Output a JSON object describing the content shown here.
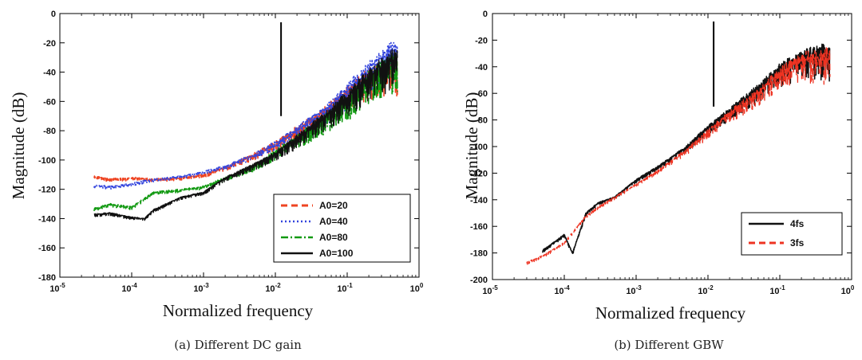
{
  "chart_data": [
    {
      "type": "line",
      "caption": "(a) Different DC gain",
      "xlabel": "Normalized frequency",
      "ylabel": "Magnitude (dB)",
      "xscale": "log",
      "xlim": [
        1e-05,
        1
      ],
      "ylim": [
        -180,
        0
      ],
      "xticks": [
        {
          "base": "10",
          "exp": "-5"
        },
        {
          "base": "10",
          "exp": "-4"
        },
        {
          "base": "10",
          "exp": "-3"
        },
        {
          "base": "10",
          "exp": "-2"
        },
        {
          "base": "10",
          "exp": "-1"
        },
        {
          "base": "10",
          "exp": "0"
        }
      ],
      "yticks": [
        "0",
        "-20",
        "-40",
        "-60",
        "-80",
        "-100",
        "-120",
        "-140",
        "-160",
        "-180"
      ],
      "yticks_values": [
        0,
        -20,
        -40,
        -60,
        -80,
        -100,
        -120,
        -140,
        -160,
        -180
      ],
      "legend_position": "lower-right",
      "grid": false,
      "series": [
        {
          "name": "A0=20",
          "color": "#ee4422",
          "style": "dashed",
          "x": [
            3e-05,
            5e-05,
            0.0001,
            0.0002,
            0.0005,
            0.001,
            0.002,
            0.005,
            0.01,
            0.02,
            0.05,
            0.1,
            0.2,
            0.5
          ],
          "y": [
            -111,
            -113,
            -112,
            -113,
            -112,
            -110,
            -105,
            -96,
            -88,
            -78,
            -65,
            -52,
            -40,
            -30
          ]
        },
        {
          "name": "A0=40",
          "color": "#3344dd",
          "style": "dotted",
          "x": [
            3e-05,
            5e-05,
            0.0001,
            0.0002,
            0.0005,
            0.001,
            0.002,
            0.005,
            0.01,
            0.02,
            0.05,
            0.1,
            0.2,
            0.5
          ],
          "y": [
            -117,
            -118,
            -116,
            -113,
            -111,
            -108,
            -104,
            -96,
            -88,
            -78,
            -64,
            -50,
            -35,
            -20
          ]
        },
        {
          "name": "A0=80",
          "color": "#119911",
          "style": "dashdot",
          "x": [
            3e-05,
            5e-05,
            0.0001,
            0.0002,
            0.0005,
            0.001,
            0.002,
            0.005,
            0.01,
            0.02,
            0.05,
            0.1,
            0.2,
            0.5
          ],
          "y": [
            -133,
            -130,
            -132,
            -122,
            -120,
            -118,
            -112,
            -104,
            -94,
            -84,
            -70,
            -58,
            -42,
            -28
          ]
        },
        {
          "name": "A0=100",
          "color": "#111111",
          "style": "solid",
          "x": [
            3e-05,
            5e-05,
            0.0001,
            0.00015,
            0.0002,
            0.0003,
            0.0005,
            0.001,
            0.002,
            0.005,
            0.01,
            0.02,
            0.05,
            0.1,
            0.2,
            0.5
          ],
          "y": [
            -137,
            -136,
            -139,
            -140,
            -134,
            -130,
            -125,
            -122,
            -112,
            -103,
            -95,
            -84,
            -68,
            -55,
            -40,
            -25
          ]
        }
      ],
      "spike": {
        "x": 0.012,
        "y": -6
      }
    },
    {
      "type": "line",
      "caption": "(b) Different GBW",
      "xlabel": "Normalized frequency",
      "ylabel": "Magnitude (dB)",
      "xscale": "log",
      "xlim": [
        1e-05,
        1
      ],
      "ylim": [
        -200,
        0
      ],
      "xticks": [
        {
          "base": "10",
          "exp": "-5"
        },
        {
          "base": "10",
          "exp": "-4"
        },
        {
          "base": "10",
          "exp": "-3"
        },
        {
          "base": "10",
          "exp": "-2"
        },
        {
          "base": "10",
          "exp": "-1"
        },
        {
          "base": "10",
          "exp": "0"
        }
      ],
      "yticks": [
        "0",
        "-20",
        "-40",
        "-60",
        "-80",
        "-100",
        "-120",
        "-140",
        "-160",
        "-180",
        "-200"
      ],
      "yticks_values": [
        0,
        -20,
        -40,
        -60,
        -80,
        -100,
        -120,
        -140,
        -160,
        -180,
        -200
      ],
      "legend_position": "lower-right",
      "grid": false,
      "series": [
        {
          "name": "4fs",
          "color": "#111111",
          "style": "solid",
          "x": [
            5e-05,
            8e-05,
            0.0001,
            0.00013,
            0.0002,
            0.0003,
            0.0005,
            0.001,
            0.002,
            0.005,
            0.01,
            0.02,
            0.05,
            0.1,
            0.2,
            0.5
          ],
          "y": [
            -178,
            -170,
            -166,
            -180,
            -150,
            -142,
            -138,
            -125,
            -115,
            -100,
            -85,
            -72,
            -55,
            -40,
            -30,
            -25
          ]
        },
        {
          "name": "3fs",
          "color": "#ee3322",
          "style": "dashed",
          "x": [
            3e-05,
            5e-05,
            0.0001,
            0.0002,
            0.0003,
            0.0005,
            0.001,
            0.002,
            0.005,
            0.01,
            0.02,
            0.05,
            0.1,
            0.2,
            0.5
          ],
          "y": [
            -187,
            -182,
            -172,
            -152,
            -145,
            -138,
            -128,
            -118,
            -102,
            -88,
            -74,
            -58,
            -42,
            -32,
            -28
          ]
        }
      ],
      "spike": {
        "x": 0.012,
        "y": -6
      }
    }
  ]
}
